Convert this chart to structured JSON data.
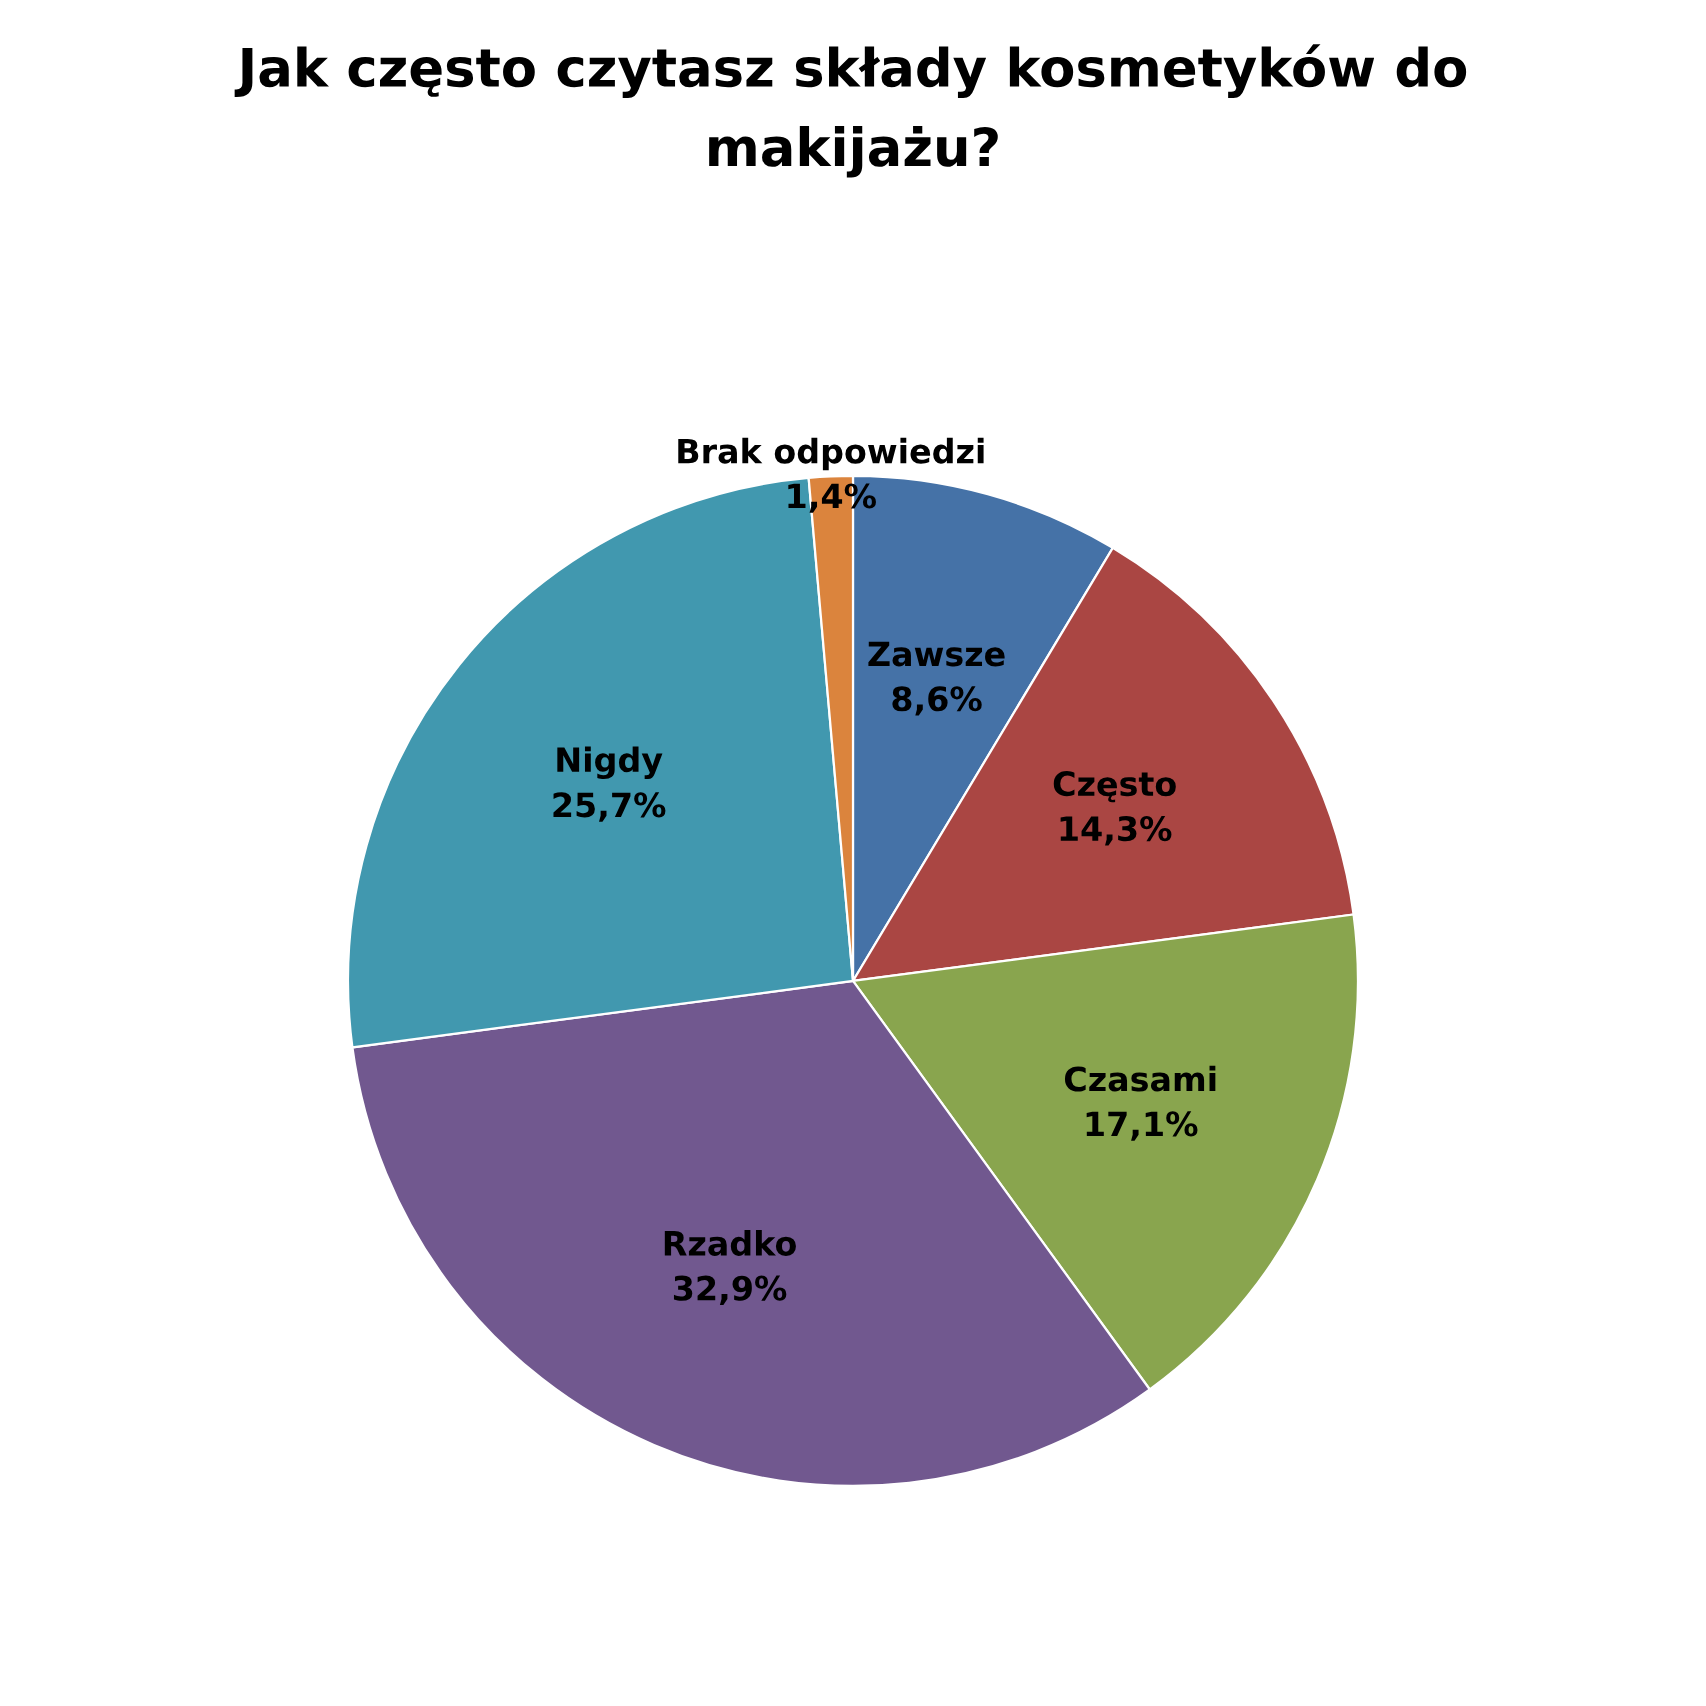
{
  "chart_data": {
    "type": "pie",
    "title": "Jak często czytasz składy kosmetyków do\nmakijażu?",
    "categories": [
      "Zawsze",
      "Często",
      "Czasami",
      "Rzadko",
      "Nigdy",
      "Brak odpowiedzi"
    ],
    "values": [
      8.6,
      14.3,
      17.1,
      32.9,
      25.7,
      1.4
    ],
    "value_labels": [
      "8,6%",
      "14,3%",
      "17,1%",
      "32,9%",
      "25,7%",
      "1,4%"
    ],
    "colors": [
      "#4572a7",
      "#aa4643",
      "#89a54e",
      "#71588f",
      "#4198af",
      "#db843d"
    ],
    "legend": false
  }
}
